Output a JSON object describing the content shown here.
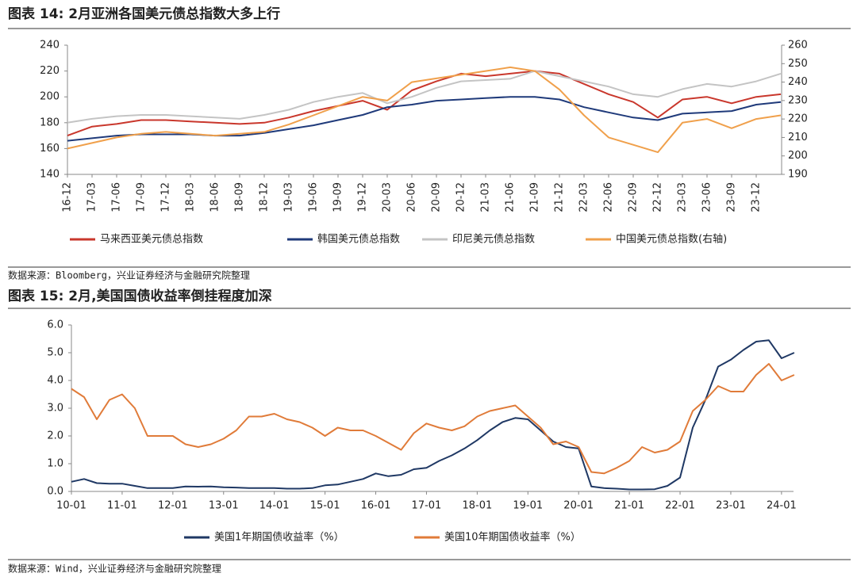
{
  "chart_data": [
    {
      "type": "line",
      "title": "图表 14: 2月亚洲各国美元债总指数大多上行",
      "source": "数据来源：Bloomberg，兴业证券经济与金融研究院整理",
      "categories": [
        "16-12",
        "17-03",
        "17-06",
        "17-09",
        "17-12",
        "18-03",
        "18-06",
        "18-09",
        "18-12",
        "19-03",
        "19-06",
        "19-09",
        "19-12",
        "20-03",
        "20-06",
        "20-09",
        "20-12",
        "21-03",
        "21-06",
        "21-09",
        "21-12",
        "22-03",
        "22-06",
        "22-09",
        "22-12",
        "23-03",
        "23-06",
        "23-09",
        "23-12",
        null
      ],
      "ylim": [
        140,
        240
      ],
      "yticks": [
        140,
        160,
        180,
        200,
        220,
        240
      ],
      "y2lim": [
        190,
        260
      ],
      "y2ticks": [
        190,
        200,
        210,
        220,
        230,
        240,
        250,
        260
      ],
      "series": [
        {
          "name": "马来西亚美元债总指数",
          "color": "#c9372c",
          "values": [
            170,
            177,
            179,
            182,
            182,
            181,
            180,
            179,
            180,
            184,
            189,
            193,
            197,
            190,
            205,
            212,
            218,
            216,
            218,
            220,
            218,
            210,
            202,
            196,
            184,
            198,
            200,
            195,
            200,
            202
          ]
        },
        {
          "name": "韩国美元债总指数",
          "color": "#1f3a7a",
          "values": [
            166,
            168,
            170,
            171,
            171,
            171,
            170,
            170,
            172,
            175,
            178,
            182,
            186,
            192,
            194,
            197,
            198,
            199,
            200,
            200,
            198,
            192,
            188,
            184,
            182,
            187,
            188,
            189,
            194,
            196
          ]
        },
        {
          "name": "印尼美元债总指数",
          "color": "#c4c4c4",
          "values": [
            180,
            183,
            185,
            186,
            186,
            185,
            184,
            183,
            186,
            190,
            196,
            200,
            203,
            195,
            200,
            207,
            212,
            213,
            214,
            220,
            216,
            212,
            208,
            202,
            200,
            206,
            210,
            208,
            212,
            218
          ]
        },
        {
          "name": "中国美元债总指数(右轴)",
          "color": "#f0a04b",
          "axis": "y2",
          "values": [
            204,
            207,
            210,
            212,
            213,
            212,
            211,
            212,
            213,
            217,
            222,
            227,
            232,
            230,
            240,
            242,
            244,
            246,
            248,
            246,
            236,
            222,
            210,
            206,
            202,
            218,
            220,
            215,
            220,
            222
          ]
        }
      ]
    },
    {
      "type": "line",
      "title": "图表 15: 2月,美国国债收益率倒挂程度加深",
      "source": "数据来源：Wind，兴业证券经济与金融研究院整理",
      "categories": [
        "10-01",
        null,
        null,
        null,
        "11-01",
        null,
        null,
        null,
        "12-01",
        null,
        null,
        null,
        "13-01",
        null,
        null,
        null,
        "14-01",
        null,
        null,
        null,
        "15-01",
        null,
        null,
        null,
        "16-01",
        null,
        null,
        null,
        "17-01",
        null,
        null,
        null,
        "18-01",
        null,
        null,
        null,
        "19-01",
        null,
        null,
        null,
        "20-01",
        null,
        null,
        null,
        "21-01",
        null,
        null,
        null,
        "22-01",
        null,
        null,
        null,
        "23-01",
        null,
        null,
        null,
        "24-01",
        null
      ],
      "ylim": [
        0,
        6
      ],
      "yticks": [
        {
          "value": 0,
          "label": "0.0"
        },
        {
          "value": 1,
          "label": "1.0"
        },
        {
          "value": 2,
          "label": "2.0"
        },
        {
          "value": 3,
          "label": "3.0"
        },
        {
          "value": 4,
          "label": "4.0"
        },
        {
          "value": 5,
          "label": "5.0"
        },
        {
          "value": 6,
          "label": "6.0"
        }
      ],
      "series": [
        {
          "name": "美国1年期国债收益率（%）",
          "color": "#1f3864",
          "values": [
            0.35,
            0.45,
            0.3,
            0.28,
            0.28,
            0.2,
            0.12,
            0.12,
            0.12,
            0.18,
            0.17,
            0.18,
            0.15,
            0.14,
            0.12,
            0.12,
            0.12,
            0.1,
            0.1,
            0.12,
            0.22,
            0.25,
            0.35,
            0.45,
            0.65,
            0.55,
            0.6,
            0.8,
            0.85,
            1.1,
            1.3,
            1.55,
            1.85,
            2.2,
            2.5,
            2.65,
            2.6,
            2.2,
            1.8,
            1.6,
            1.55,
            0.18,
            0.12,
            0.1,
            0.07,
            0.07,
            0.08,
            0.2,
            0.5,
            2.3,
            3.3,
            4.5,
            4.75,
            5.1,
            5.4,
            5.45,
            4.8,
            5.0
          ]
        },
        {
          "name": "美国10年期国债收益率（%）",
          "color": "#e07b39",
          "values": [
            3.7,
            3.4,
            2.6,
            3.3,
            3.5,
            3.0,
            2.0,
            2.0,
            2.0,
            1.7,
            1.6,
            1.7,
            1.9,
            2.2,
            2.7,
            2.7,
            2.8,
            2.6,
            2.5,
            2.3,
            2.0,
            2.3,
            2.2,
            2.2,
            2.0,
            1.75,
            1.5,
            2.1,
            2.45,
            2.3,
            2.2,
            2.35,
            2.7,
            2.9,
            3.0,
            3.1,
            2.7,
            2.3,
            1.7,
            1.8,
            1.6,
            0.7,
            0.65,
            0.85,
            1.1,
            1.6,
            1.4,
            1.5,
            1.8,
            2.9,
            3.3,
            3.8,
            3.6,
            3.6,
            4.2,
            4.6,
            4.0,
            4.2
          ]
        }
      ]
    }
  ]
}
